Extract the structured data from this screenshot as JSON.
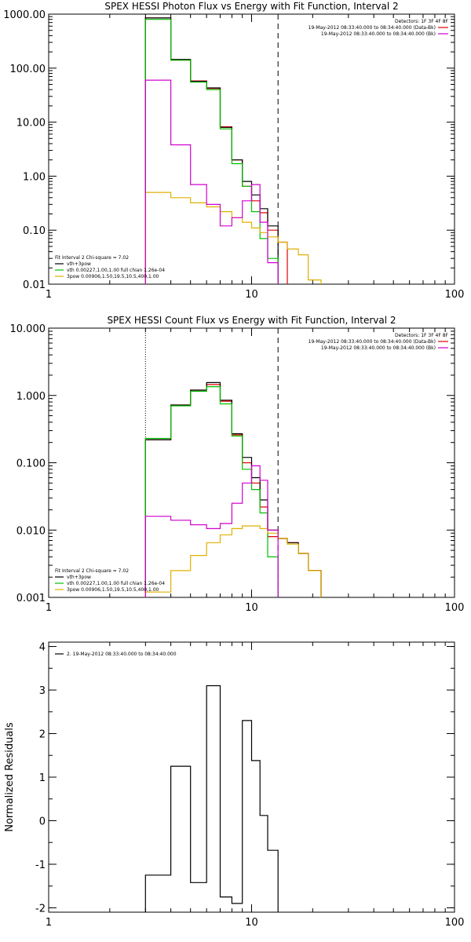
{
  "chart_data": [
    {
      "type": "line",
      "title": "SPEX HESSI Photon Flux vs Energy with Fit Function, Interval 2",
      "xscale": "log",
      "yscale": "log",
      "xlim": [
        1,
        100
      ],
      "ylim": [
        0.01,
        1000
      ],
      "xticks": [
        {
          "v": 1,
          "label": "1"
        },
        {
          "v": 10,
          "label": "10"
        },
        {
          "v": 100,
          "label": "100"
        }
      ],
      "yticks": [
        {
          "v": 0.01,
          "label": "0.01"
        },
        {
          "v": 0.1,
          "label": "0.10"
        },
        {
          "v": 1,
          "label": "1.00"
        },
        {
          "v": 10,
          "label": "10.00"
        },
        {
          "v": 100,
          "label": "100.00"
        },
        {
          "v": 1000,
          "label": "1000.00"
        }
      ],
      "vlines": [
        {
          "x": 3.0,
          "style": "dotted"
        },
        {
          "x": 13.5,
          "style": "dashed"
        }
      ],
      "legend_top_right": {
        "position": "top-right",
        "header": "Detectors: 1F 3F 4F 8F",
        "items": [
          {
            "label": "19-May-2012 08:33:40.000 to 08:34:40.000 (Data-Bk)",
            "color": "#e00000"
          },
          {
            "label": "19-May-2012 08:33:40.000 to 08:34:40.000 (Bk)",
            "color": "#d000d0"
          }
        ]
      },
      "legend_bottom_left": {
        "position": "bottom-left",
        "header": "Fit Interval  2   Chi-square = 7.02",
        "items": [
          {
            "label": "vth+3pow",
            "color": "#000000"
          },
          {
            "label": "vth 0.00227,1.00,1.00  full chian 1.26e-04",
            "color": "#00c000"
          },
          {
            "label": "3pow 0.00906,1.50,19.5,10.5,400,1.00",
            "color": "#e0b000"
          }
        ]
      },
      "bin_edges": [
        3.0,
        4.0,
        5.0,
        6.0,
        7.0,
        8.0,
        9.0,
        10.0,
        11.0,
        12.0,
        13.5,
        15.0,
        17.0,
        19.0,
        22.0
      ],
      "series": [
        {
          "name": "Data-Bk",
          "color": "#e00000",
          "values": [
            850,
            140,
            58,
            42,
            8.2,
            2.0,
            0.65,
            0.35,
            0.21,
            0.1,
            0.06,
            null,
            null,
            null
          ]
        },
        {
          "name": "vth+3pow",
          "color": "#000000",
          "values": [
            850,
            145,
            57,
            43,
            8.0,
            2.0,
            0.8,
            0.45,
            0.25,
            0.12,
            null,
            null,
            null,
            null
          ]
        },
        {
          "name": "vth",
          "color": "#00c000",
          "values": [
            800,
            140,
            55,
            40,
            7.5,
            1.7,
            0.65,
            0.22,
            0.07,
            0.03,
            null,
            null,
            null,
            null
          ]
        },
        {
          "name": "3pow",
          "color": "#e0b000",
          "values": [
            0.5,
            0.4,
            0.32,
            0.27,
            0.22,
            0.17,
            0.14,
            0.11,
            0.09,
            0.075,
            0.06,
            0.045,
            0.035,
            0.012
          ]
        },
        {
          "name": "Bk",
          "color": "#d000d0",
          "values": [
            60,
            3.8,
            0.7,
            0.3,
            0.12,
            0.17,
            0.35,
            0.7,
            0.14,
            0.025,
            null,
            null,
            null,
            null
          ]
        }
      ]
    },
    {
      "type": "line",
      "title": "SPEX HESSI Count Flux vs Energy with Fit Function, Interval 2",
      "xscale": "log",
      "yscale": "log",
      "xlim": [
        1,
        100
      ],
      "ylim": [
        0.001,
        10
      ],
      "xticks": [
        {
          "v": 1,
          "label": "1"
        },
        {
          "v": 10,
          "label": "10"
        },
        {
          "v": 100,
          "label": "100"
        }
      ],
      "yticks": [
        {
          "v": 0.001,
          "label": "0.001"
        },
        {
          "v": 0.01,
          "label": "0.010"
        },
        {
          "v": 0.1,
          "label": "0.100"
        },
        {
          "v": 1,
          "label": "1.000"
        },
        {
          "v": 10,
          "label": "10.000"
        }
      ],
      "vlines": [
        {
          "x": 3.0,
          "style": "dotted"
        },
        {
          "x": 13.5,
          "style": "dashed"
        }
      ],
      "legend_top_right": {
        "position": "top-right",
        "header": "Detectors: 1F 3F 4F 8F",
        "items": [
          {
            "label": "19-May-2012 08:33:40.000 to 08:34:40.000 (Data-Bk)",
            "color": "#e00000"
          },
          {
            "label": "19-May-2012 08:33:40.000 to 08:34:40.000 (Bk)",
            "color": "#d000d0"
          }
        ]
      },
      "legend_bottom_left": {
        "position": "bottom-left",
        "header": "Fit Interval  2   Chi-square = 7.02",
        "items": [
          {
            "label": "vth+3pow",
            "color": "#000000"
          },
          {
            "label": "vth 0.00227,1.00,1.00  full chian 1.26e-04",
            "color": "#00c000"
          },
          {
            "label": "3pow 0.00906,1.50,19.5,10.5,400,1.00",
            "color": "#e0b000"
          }
        ]
      },
      "bin_edges": [
        3.0,
        4.0,
        5.0,
        6.0,
        7.0,
        8.0,
        9.0,
        10.0,
        11.0,
        12.0,
        13.5,
        15.0,
        17.0,
        19.0,
        22.0
      ],
      "series": [
        {
          "name": "Data-Bk",
          "color": "#e00000",
          "values": [
            0.22,
            0.72,
            1.2,
            1.45,
            0.82,
            0.26,
            0.1,
            0.05,
            0.022,
            0.008,
            0.0075,
            0.0065,
            0.0045,
            0.0025
          ]
        },
        {
          "name": "vth+3pow",
          "color": "#000000",
          "values": [
            0.22,
            0.72,
            1.2,
            1.55,
            0.85,
            0.27,
            0.12,
            0.06,
            0.028,
            0.01,
            0.0075,
            0.0065,
            0.0045,
            0.0025
          ]
        },
        {
          "name": "vth",
          "color": "#00c000",
          "values": [
            0.23,
            0.7,
            1.15,
            1.35,
            0.75,
            0.25,
            0.08,
            0.04,
            0.018,
            0.004,
            null,
            null,
            null,
            null
          ]
        },
        {
          "name": "3pow",
          "color": "#e0b000",
          "values": [
            0.0012,
            0.0025,
            0.0042,
            0.0065,
            0.0085,
            0.0105,
            0.0115,
            0.0115,
            0.0105,
            0.009,
            0.0075,
            0.0062,
            0.0045,
            0.0025
          ]
        },
        {
          "name": "Bk",
          "color": "#d000d0",
          "values": [
            0.016,
            0.014,
            0.012,
            0.0105,
            0.0125,
            0.025,
            0.05,
            0.09,
            0.055,
            0.01,
            null,
            null,
            null,
            null
          ]
        }
      ]
    },
    {
      "type": "line",
      "title": "",
      "xscale": "log",
      "yscale": "linear",
      "xlim": [
        1,
        100
      ],
      "ylim": [
        -2.1,
        4.1
      ],
      "ylabel": "Normalized Residuals",
      "xticks": [
        {
          "v": 1,
          "label": "1"
        },
        {
          "v": 10,
          "label": "10"
        },
        {
          "v": 100,
          "label": "100"
        }
      ],
      "yticks": [
        {
          "v": -2,
          "label": "-2"
        },
        {
          "v": -1,
          "label": "-1"
        },
        {
          "v": 0,
          "label": "0"
        },
        {
          "v": 1,
          "label": "1"
        },
        {
          "v": 2,
          "label": "2"
        },
        {
          "v": 3,
          "label": "3"
        },
        {
          "v": 4,
          "label": "4"
        }
      ],
      "legend": {
        "position": "top-left",
        "items": [
          {
            "label": "2. 19-May-2012 08:33:40.000 to 08:34:40.000",
            "color": "#000000"
          }
        ]
      },
      "bin_edges": [
        3.0,
        4.0,
        5.0,
        6.0,
        7.0,
        8.0,
        9.0,
        10.0,
        11.0,
        12.0,
        13.5
      ],
      "series": [
        {
          "name": "2. 19-May-2012 08:33:40.000 to 08:34:40.000",
          "color": "#000000",
          "values": [
            -1.25,
            1.25,
            -1.42,
            3.1,
            -1.75,
            -1.9,
            2.3,
            1.38,
            0.12,
            -0.68
          ]
        }
      ]
    }
  ]
}
